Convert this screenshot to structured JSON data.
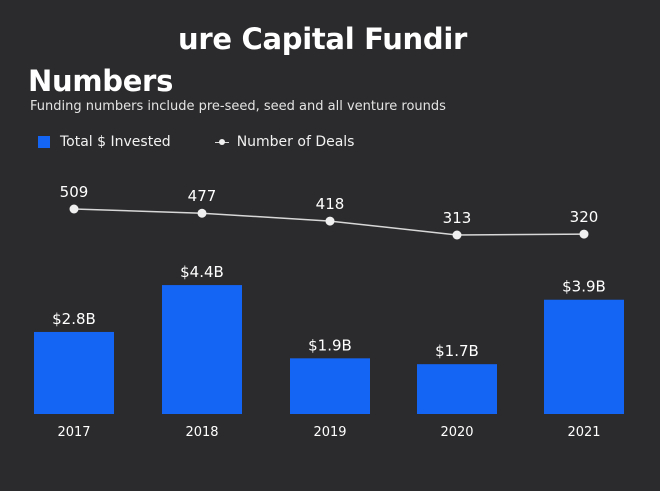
{
  "title": {
    "line1": "ure Capital Fundir",
    "line2": "Numbers"
  },
  "subtitle": "Funding numbers include pre-seed, seed and all venture rounds",
  "colors": {
    "background": "#2b2b2d",
    "bar": "#1565f5",
    "line": "#d8d8d8",
    "marker": "#f0f0f0"
  },
  "chart_data": {
    "type": "bar",
    "categories": [
      "2017",
      "2018",
      "2019",
      "2020",
      "2021"
    ],
    "series": [
      {
        "name": "Total $ Invested",
        "type": "bar",
        "values": [
          2.8,
          4.4,
          1.9,
          1.7,
          3.9
        ],
        "labels": [
          "$2.8B",
          "$4.4B",
          "$1.9B",
          "$1.7B",
          "$3.9B"
        ]
      },
      {
        "name": "Number of Deals",
        "type": "line",
        "values": [
          509,
          477,
          418,
          313,
          320
        ],
        "labels": [
          "509",
          "477",
          "418",
          "313",
          "320"
        ]
      }
    ],
    "legend_position": "top-left",
    "grid": false
  }
}
